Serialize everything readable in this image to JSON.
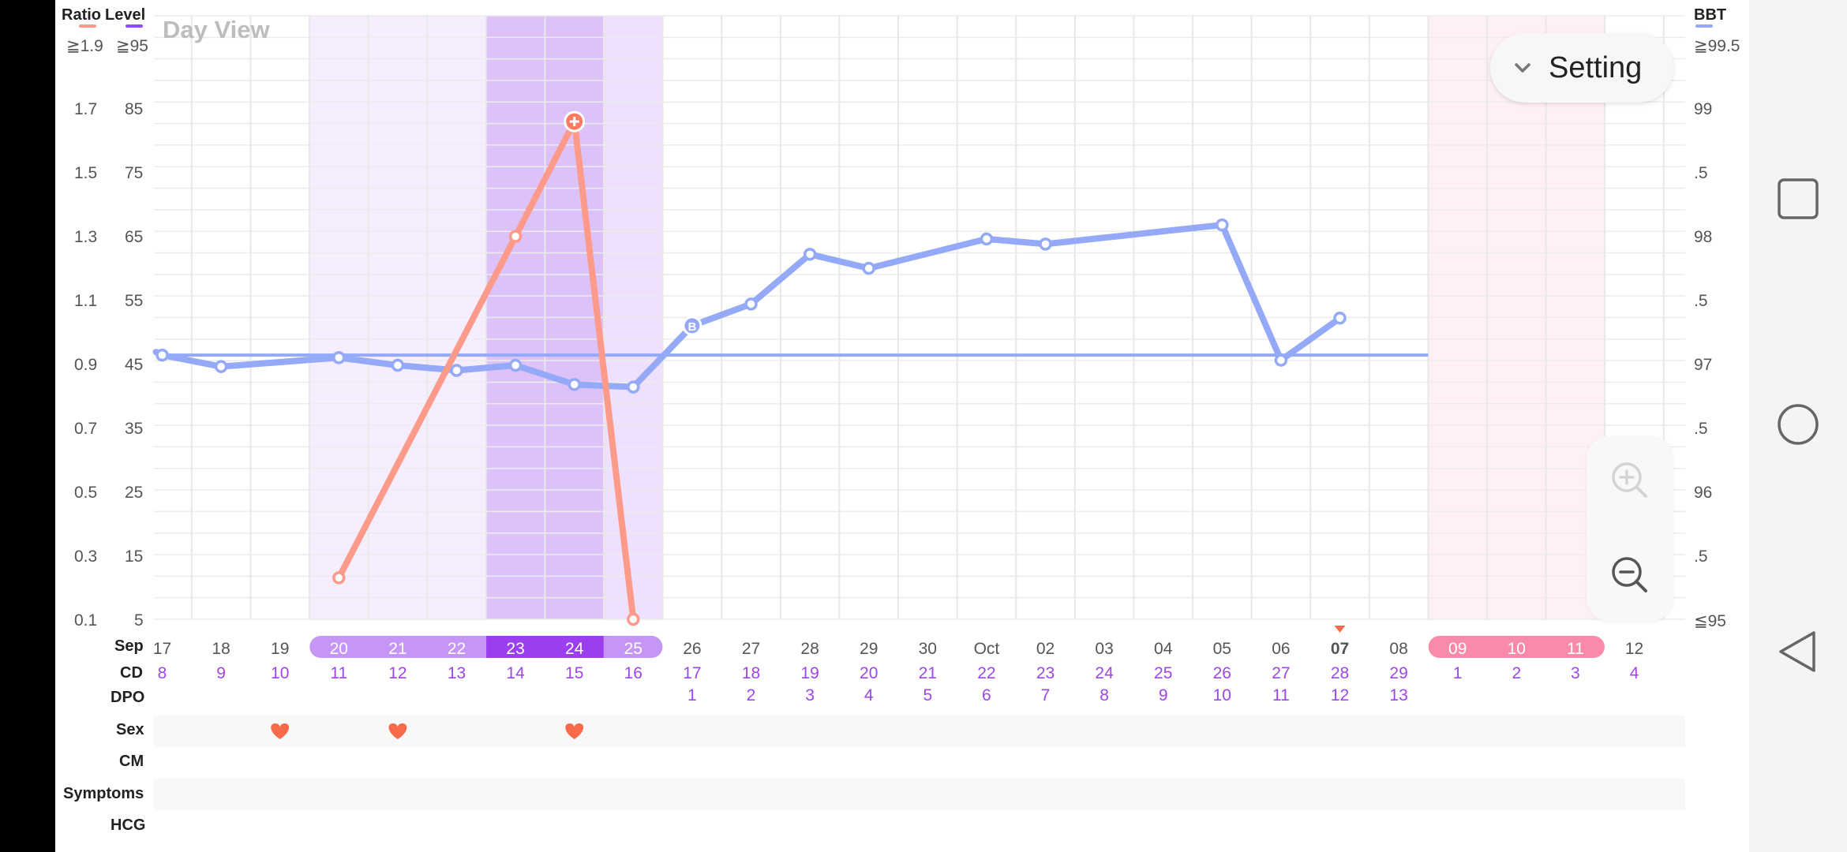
{
  "header": {
    "ratio_label": "Ratio",
    "level_label": "Level",
    "bbt_label": "BBT",
    "day_view_label": "Day View",
    "setting_label": "Setting"
  },
  "colors": {
    "ratio_line": "#fd9a8a",
    "bbt_line": "#94a9f7",
    "level_legend": "#8c4dff",
    "purple_label": "#a045e8",
    "fertile_light": "#f6eefe",
    "fertile_mid": "#eee0fe",
    "fertile_dark": "#ddc2f9",
    "period_bg": "#fff0f3",
    "period_pill": "#f98aaa",
    "sex_heart": "#f86a4a"
  },
  "axes": {
    "ratio_ticks": [
      "≧1.9",
      "1.7",
      "1.5",
      "1.3",
      "1.1",
      "0.9",
      "0.7",
      "0.5",
      "0.3",
      "0.1"
    ],
    "level_ticks": [
      "≧95",
      "85",
      "75",
      "65",
      "55",
      "45",
      "35",
      "25",
      "15",
      "5"
    ],
    "bbt_ticks": [
      "≧99.5",
      "99",
      ".5",
      "98",
      ".5",
      "97",
      ".5",
      "96",
      ".5",
      "≦95"
    ]
  },
  "row_labels": {
    "month": "Sep",
    "cd": "CD",
    "dpo": "DPO",
    "sex": "Sex",
    "cm": "CM",
    "symptoms": "Symptoms",
    "hcg": "HCG"
  },
  "dates": [
    "17",
    "18",
    "19",
    "20",
    "21",
    "22",
    "23",
    "24",
    "25",
    "26",
    "27",
    "28",
    "29",
    "30",
    "Oct",
    "02",
    "03",
    "04",
    "05",
    "06",
    "07",
    "08",
    "09",
    "10",
    "11",
    "12"
  ],
  "cd": [
    "8",
    "9",
    "10",
    "11",
    "12",
    "13",
    "14",
    "15",
    "16",
    "17",
    "18",
    "19",
    "20",
    "21",
    "22",
    "23",
    "24",
    "25",
    "26",
    "27",
    "28",
    "29",
    "1",
    "2",
    "3",
    "4"
  ],
  "dpo": [
    "",
    "",
    "",
    "",
    "",
    "",
    "",
    "",
    "",
    "1",
    "2",
    "3",
    "4",
    "5",
    "6",
    "7",
    "8",
    "9",
    "10",
    "11",
    "12",
    "13",
    "",
    "",
    "",
    ""
  ],
  "today_index": 20,
  "ovulation_test_index": 7,
  "bbt_start_index": 9,
  "fertile_indices": [
    3,
    4,
    5,
    6,
    7,
    8
  ],
  "fertile_peak_indices": [
    6,
    7
  ],
  "period_indices": [
    22,
    23,
    24
  ],
  "sex_indices": [
    2,
    4,
    7
  ],
  "chart_data": {
    "type": "line",
    "x": [
      "Sep 17",
      "Sep 18",
      "Sep 19",
      "Sep 20",
      "Sep 21",
      "Sep 22",
      "Sep 23",
      "Sep 24",
      "Sep 25",
      "Sep 26",
      "Sep 27",
      "Sep 28",
      "Sep 29",
      "Sep 30",
      "Oct 01",
      "Oct 02",
      "Oct 03",
      "Oct 04",
      "Oct 05",
      "Oct 06",
      "Oct 07",
      "Oct 08",
      "Oct 09",
      "Oct 10",
      "Oct 11",
      "Oct 12"
    ],
    "series": [
      {
        "name": "BBT",
        "axis": "right",
        "values": [
          97.07,
          96.98,
          null,
          97.05,
          96.99,
          96.95,
          96.99,
          96.84,
          96.82,
          97.3,
          97.47,
          97.86,
          97.75,
          null,
          97.98,
          97.94,
          null,
          null,
          98.09,
          97.03,
          97.36,
          null,
          null,
          null,
          null,
          null
        ]
      },
      {
        "name": "Ratio",
        "axis": "left",
        "values": [
          null,
          null,
          null,
          0.23,
          null,
          null,
          1.3,
          1.66,
          0.1,
          null,
          null,
          null,
          null,
          null,
          null,
          null,
          null,
          null,
          null,
          null,
          null,
          null,
          null,
          null,
          null,
          null
        ]
      }
    ],
    "coverline": 97.07,
    "ratio_range": [
      0.1,
      1.9
    ],
    "level_range": [
      5,
      95
    ],
    "bbt_range": [
      95,
      99.5
    ],
    "grid": true
  }
}
